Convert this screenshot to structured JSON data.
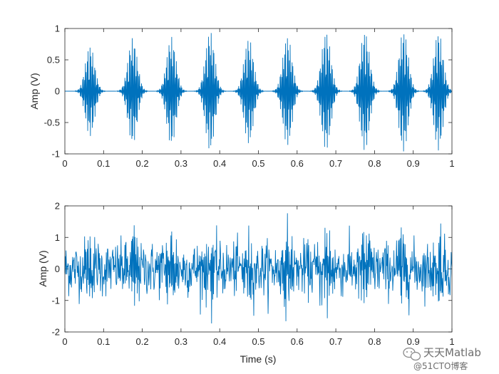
{
  "chart_data": [
    {
      "type": "line",
      "title": "",
      "xlabel": "",
      "ylabel": "Amp (V)",
      "xlim": [
        0,
        1
      ],
      "ylim": [
        -1,
        1
      ],
      "xticks": [
        "0",
        "0.1",
        "0.2",
        "0.3",
        "0.4",
        "0.5",
        "0.6",
        "0.7",
        "0.8",
        "0.9",
        "1"
      ],
      "yticks": [
        "1",
        "0.5",
        "0",
        "-0.5",
        "-1"
      ],
      "grid": false,
      "color": "#0072BD",
      "series": [
        {
          "description": "periodic decaying-oscillation bursts",
          "burst_centers": [
            0.065,
            0.175,
            0.275,
            0.375,
            0.475,
            0.575,
            0.675,
            0.775,
            0.875,
            0.965
          ],
          "burst_peak_amplitude": [
            0.73,
            0.85,
            0.87,
            0.96,
            0.85,
            0.88,
            0.95,
            0.96,
            0.97,
            0.95
          ]
        }
      ]
    },
    {
      "type": "line",
      "title": "",
      "xlabel": "Time (s)",
      "ylabel": "Amp (V)",
      "xlim": [
        0,
        1
      ],
      "ylim": [
        -2,
        2
      ],
      "xticks": [
        "0",
        "0.1",
        "0.2",
        "0.3",
        "0.4",
        "0.5",
        "0.6",
        "0.7",
        "0.8",
        "0.9",
        "1"
      ],
      "yticks": [
        "2",
        "1",
        "0",
        "-1",
        "-2"
      ],
      "grid": false,
      "color": "#0072BD",
      "series": [
        {
          "description": "noisy signal (bursts buried in noise)",
          "approx_range": [
            -1.85,
            2.0
          ]
        }
      ]
    }
  ],
  "watermark": {
    "line1": "天天Matlab",
    "line2": "@51CTO博客"
  }
}
